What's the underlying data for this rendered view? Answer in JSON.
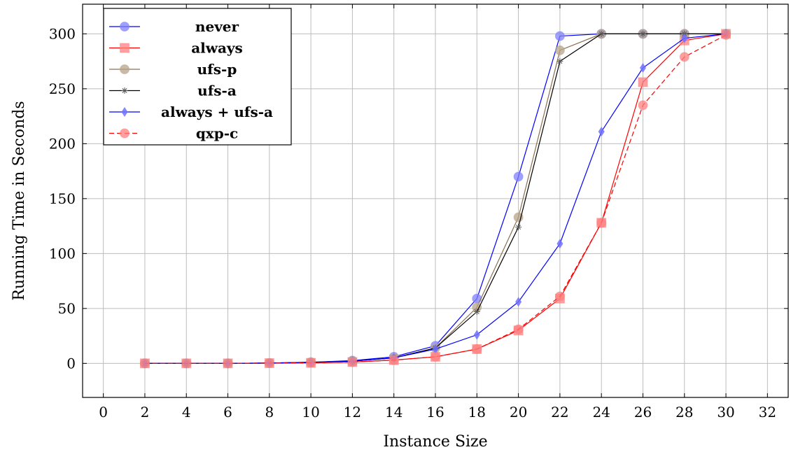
{
  "chart_data": {
    "type": "line",
    "xlabel": "Instance Size",
    "ylabel": "Running Time in Seconds",
    "xlim": [
      -1,
      33
    ],
    "ylim": [
      -31,
      327
    ],
    "xticks": [
      0,
      2,
      4,
      6,
      8,
      10,
      12,
      14,
      16,
      18,
      20,
      22,
      24,
      26,
      28,
      30,
      32
    ],
    "yticks": [
      0,
      50,
      100,
      150,
      200,
      250,
      300
    ],
    "grid": true,
    "legend_position": "top-left",
    "x": [
      2,
      4,
      6,
      8,
      10,
      12,
      14,
      16,
      18,
      20,
      22,
      24,
      26,
      28,
      30
    ],
    "series": [
      {
        "name": "never",
        "color": "#0000ff",
        "marker_color": "#8080ff",
        "marker": "circle",
        "dash": "solid",
        "values": [
          0,
          0,
          0,
          0.3,
          1,
          2.5,
          6,
          16,
          59,
          170,
          298,
          300,
          300,
          300,
          300
        ]
      },
      {
        "name": "always",
        "color": "#ff0000",
        "marker_color": "#ff8080",
        "marker": "square",
        "dash": "solid",
        "values": [
          0,
          0,
          0,
          0.2,
          0.5,
          1.2,
          3,
          6,
          13,
          30,
          59,
          128,
          256,
          294,
          300
        ]
      },
      {
        "name": "ufs-p",
        "color": "#8c7050",
        "marker_color": "#b8a488",
        "marker": "circle",
        "dash": "solid",
        "values": [
          0,
          0,
          0,
          0.3,
          1,
          2,
          5,
          14,
          51,
          133,
          285,
          300,
          300,
          300,
          300
        ]
      },
      {
        "name": "ufs-a",
        "color": "#000000",
        "marker_color": "#555555",
        "marker": "star",
        "dash": "solid",
        "values": [
          0,
          0,
          0,
          0.3,
          1,
          2,
          5,
          14,
          47,
          124,
          275,
          300,
          300,
          300,
          300
        ]
      },
      {
        "name": "always + ufs-a",
        "color": "#0000ff",
        "marker_color": "#7070ff",
        "marker": "diamond",
        "dash": "solid",
        "values": [
          0,
          0,
          0,
          0.3,
          0.8,
          2,
          5,
          13,
          26,
          56,
          109,
          211,
          269,
          296,
          300
        ]
      },
      {
        "name": "qxp-c",
        "color": "#ff0000",
        "marker_color": "#ff8080",
        "marker": "circle",
        "dash": "dashed",
        "values": [
          0,
          0,
          0,
          0.2,
          0.5,
          1.2,
          3,
          6,
          13,
          31,
          61,
          128,
          235,
          279,
          299
        ]
      }
    ]
  }
}
